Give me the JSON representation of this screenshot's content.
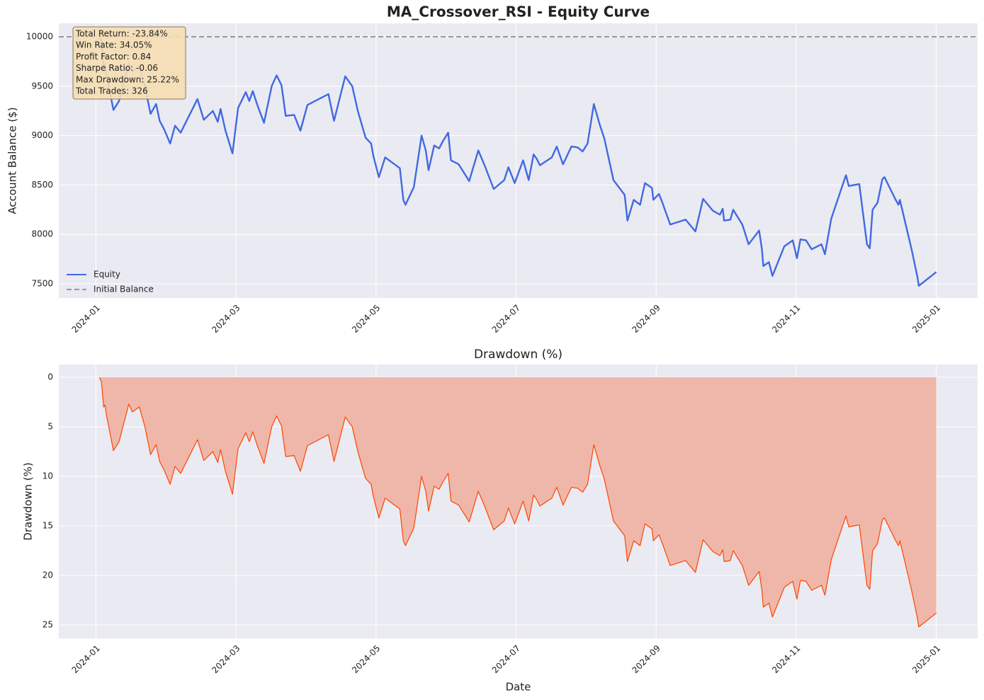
{
  "chart_data": [
    {
      "type": "line",
      "title": "MA_Crossover_RSI - Equity Curve",
      "ylabel": "Account Balance ($)",
      "x": [
        0.05,
        0.08,
        0.11,
        0.13,
        0.15,
        0.25,
        0.33,
        0.47,
        0.52,
        0.62,
        0.7,
        0.78,
        0.86,
        0.91,
        0.97,
        1.06,
        1.13,
        1.21,
        1.45,
        1.54,
        1.67,
        1.74,
        1.78,
        1.85,
        1.95,
        2.03,
        2.14,
        2.19,
        2.24,
        2.31,
        2.4,
        2.51,
        2.58,
        2.65,
        2.71,
        2.83,
        2.92,
        3.02,
        3.32,
        3.4,
        3.56,
        3.66,
        3.74,
        3.85,
        3.93,
        3.96,
        4.04,
        4.13,
        4.34,
        4.39,
        4.42,
        4.54,
        4.65,
        4.71,
        4.75,
        4.83,
        4.9,
        4.96,
        5.03,
        5.07,
        5.18,
        5.33,
        5.46,
        5.55,
        5.68,
        5.83,
        5.89,
        5.98,
        6.1,
        6.18,
        6.25,
        6.29,
        6.34,
        6.51,
        6.58,
        6.67,
        6.79,
        6.88,
        6.95,
        7.02,
        7.11,
        7.19,
        7.26,
        7.39,
        7.55,
        7.59,
        7.68,
        7.77,
        7.84,
        7.94,
        7.96,
        8.04,
        8.1,
        8.2,
        8.42,
        8.56,
        8.67,
        8.81,
        8.91,
        8.95,
        8.97,
        9.06,
        9.1,
        9.23,
        9.32,
        9.47,
        9.51,
        9.53,
        9.61,
        9.66,
        9.83,
        9.95,
        10.01,
        10.06,
        10.14,
        10.22,
        10.36,
        10.41,
        10.5,
        10.71,
        10.75,
        10.9,
        11.01,
        11.05,
        11.09,
        11.16,
        11.23,
        11.26,
        11.42,
        11.46,
        11.48,
        11.65,
        11.73,
        11.75,
        12.0
      ],
      "series": [
        {
          "name": "Equity",
          "color": "#4169e1",
          "values": [
            10000,
            9950,
            9700,
            9720,
            9620,
            9260,
            9350,
            9730,
            9650,
            9700,
            9500,
            9220,
            9320,
            9150,
            9070,
            8920,
            9100,
            9030,
            9370,
            9160,
            9250,
            9140,
            9270,
            9050,
            8820,
            9280,
            9440,
            9350,
            9450,
            9300,
            9130,
            9500,
            9610,
            9510,
            9200,
            9210,
            9050,
            9310,
            9420,
            9150,
            9600,
            9500,
            9250,
            8980,
            8920,
            8800,
            8580,
            8780,
            8670,
            8350,
            8300,
            8480,
            9000,
            8850,
            8650,
            8900,
            8870,
            8950,
            9030,
            8750,
            8710,
            8540,
            8850,
            8700,
            8460,
            8550,
            8680,
            8520,
            8750,
            8550,
            8810,
            8770,
            8700,
            8780,
            8890,
            8710,
            8890,
            8880,
            8840,
            8920,
            9320,
            9120,
            8970,
            8550,
            8400,
            8140,
            8350,
            8300,
            8520,
            8470,
            8350,
            8410,
            8300,
            8100,
            8150,
            8030,
            8360,
            8240,
            8200,
            8260,
            8140,
            8150,
            8250,
            8100,
            7900,
            8040,
            7850,
            7680,
            7720,
            7580,
            7880,
            7940,
            7760,
            7950,
            7940,
            7850,
            7900,
            7800,
            8160,
            8600,
            8490,
            8510,
            7900,
            7860,
            8250,
            8320,
            8560,
            8580,
            8350,
            8300,
            8350,
            7840,
            7570,
            7480,
            7620
          ]
        }
      ],
      "reference_lines": [
        {
          "name": "Initial Balance",
          "value": 10000,
          "color": "#999999"
        }
      ],
      "xlim": [
        -0.53,
        12.59
      ],
      "xticks": [
        {
          "value": 0,
          "label": "2024-01"
        },
        {
          "value": 2,
          "label": "2024-03"
        },
        {
          "value": 4,
          "label": "2024-05"
        },
        {
          "value": 6,
          "label": "2024-07"
        },
        {
          "value": 8,
          "label": "2024-09"
        },
        {
          "value": 10,
          "label": "2024-11"
        },
        {
          "value": 12,
          "label": "2025-01"
        }
      ],
      "ylim": [
        7357,
        10136
      ],
      "yticks": [
        7500,
        8000,
        8500,
        9000,
        9500,
        10000
      ],
      "grid": true,
      "legend": "lower left",
      "annotation": [
        "Total Return: -23.84%",
        "Win Rate: 34.05%",
        "Profit Factor: 0.84",
        "Sharpe Ratio: -0.06",
        "Max Drawdown: 25.22%",
        "Total Trades: 326"
      ]
    },
    {
      "type": "area",
      "title": "Drawdown (%)",
      "xlabel": "Date",
      "ylabel": "Drawdown (%)",
      "x": [
        0.05,
        0.08,
        0.11,
        0.13,
        0.15,
        0.25,
        0.33,
        0.47,
        0.52,
        0.62,
        0.7,
        0.78,
        0.86,
        0.91,
        0.97,
        1.06,
        1.13,
        1.21,
        1.45,
        1.54,
        1.67,
        1.74,
        1.78,
        1.85,
        1.95,
        2.03,
        2.14,
        2.19,
        2.24,
        2.31,
        2.4,
        2.51,
        2.58,
        2.65,
        2.71,
        2.83,
        2.92,
        3.02,
        3.32,
        3.4,
        3.56,
        3.66,
        3.74,
        3.85,
        3.93,
        3.96,
        4.04,
        4.13,
        4.34,
        4.39,
        4.42,
        4.54,
        4.65,
        4.71,
        4.75,
        4.83,
        4.9,
        4.96,
        5.03,
        5.07,
        5.18,
        5.33,
        5.46,
        5.55,
        5.68,
        5.83,
        5.89,
        5.98,
        6.1,
        6.18,
        6.25,
        6.29,
        6.34,
        6.51,
        6.58,
        6.67,
        6.79,
        6.88,
        6.95,
        7.02,
        7.11,
        7.19,
        7.26,
        7.39,
        7.55,
        7.59,
        7.68,
        7.77,
        7.84,
        7.94,
        7.96,
        8.04,
        8.1,
        8.2,
        8.42,
        8.56,
        8.67,
        8.81,
        8.91,
        8.95,
        8.97,
        9.06,
        9.1,
        9.23,
        9.32,
        9.47,
        9.51,
        9.53,
        9.61,
        9.66,
        9.83,
        9.95,
        10.01,
        10.06,
        10.14,
        10.22,
        10.36,
        10.41,
        10.5,
        10.71,
        10.75,
        10.9,
        11.01,
        11.05,
        11.09,
        11.16,
        11.23,
        11.26,
        11.42,
        11.46,
        11.48,
        11.65,
        11.73,
        11.75,
        12.0
      ],
      "series": [
        {
          "color": "#ff4500",
          "fill_color": "#efb7a9",
          "values": [
            0,
            0.5,
            3,
            2.8,
            3.8,
            7.4,
            6.5,
            2.7,
            3.5,
            3.0,
            5,
            7.8,
            6.8,
            8.5,
            9.3,
            10.8,
            9.0,
            9.7,
            6.3,
            8.4,
            7.5,
            8.6,
            7.3,
            9.5,
            11.8,
            7.2,
            5.6,
            6.5,
            5.5,
            7.0,
            8.7,
            5.0,
            3.9,
            4.9,
            8,
            7.9,
            9.5,
            6.9,
            5.8,
            8.5,
            4.0,
            5.0,
            7.5,
            10.2,
            10.8,
            12,
            14.2,
            12.2,
            13.3,
            16.5,
            17,
            15.2,
            10.0,
            11.5,
            13.5,
            11.0,
            11.3,
            10.5,
            9.7,
            12.5,
            12.9,
            14.6,
            11.5,
            13.0,
            15.4,
            14.5,
            13.2,
            14.8,
            12.5,
            14.5,
            11.9,
            12.3,
            13.0,
            12.2,
            11.1,
            12.9,
            11.1,
            11.2,
            11.6,
            10.8,
            6.8,
            8.8,
            10.3,
            14.5,
            16.0,
            18.6,
            16.5,
            17.0,
            14.8,
            15.3,
            16.5,
            15.9,
            17.0,
            19.0,
            18.5,
            19.7,
            16.4,
            17.6,
            18.0,
            17.4,
            18.6,
            18.5,
            17.5,
            19.0,
            21.0,
            19.6,
            21.5,
            23.2,
            22.8,
            24.2,
            21.2,
            20.6,
            22.4,
            20.5,
            20.6,
            21.5,
            21.0,
            22.0,
            18.4,
            14.0,
            15.1,
            14.9,
            21.0,
            21.4,
            17.5,
            16.8,
            14.4,
            14.2,
            16.5,
            17.0,
            16.5,
            21.6,
            24.3,
            25.2,
            23.8
          ]
        }
      ],
      "xlim": [
        -0.53,
        12.59
      ],
      "xticks": [
        {
          "value": 0,
          "label": "2024-01"
        },
        {
          "value": 2,
          "label": "2024-03"
        },
        {
          "value": 4,
          "label": "2024-05"
        },
        {
          "value": 6,
          "label": "2024-07"
        },
        {
          "value": 8,
          "label": "2024-09"
        },
        {
          "value": 10,
          "label": "2024-11"
        },
        {
          "value": 12,
          "label": "2025-01"
        }
      ],
      "ylim": [
        26.36,
        -1.29
      ],
      "yticks": [
        0,
        5,
        10,
        15,
        20,
        25
      ],
      "grid": true
    }
  ]
}
